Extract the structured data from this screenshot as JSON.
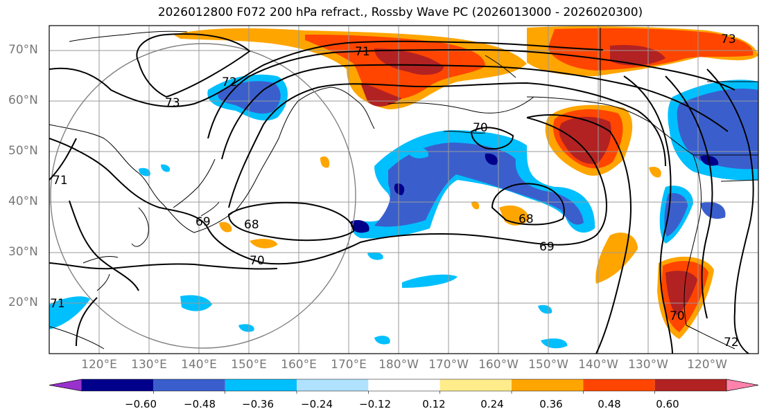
{
  "title": "2026012800 F072 200 hPa refract., Rossby Wave PC (2026013000 - 2026020300)",
  "lat_labels": [
    "70°N",
    "60°N",
    "50°N",
    "40°N",
    "30°N",
    "20°N"
  ],
  "lon_labels": [
    "120°E",
    "130°E",
    "140°E",
    "150°E",
    "160°E",
    "170°E",
    "180°W",
    "170°W",
    "160°W",
    "150°W",
    "140°W",
    "130°W",
    "120°W"
  ],
  "colorbar": {
    "colors": [
      "#9932cc",
      "#00008b",
      "#3a5fcd",
      "#00bfff",
      "#b0e2ff",
      "#ffffff",
      "#ffec8b",
      "#ffa500",
      "#ff4500",
      "#b22222",
      "#ff82ab"
    ],
    "labels": [
      "−0.60",
      "−0.48",
      "−0.36",
      "−0.24",
      "−0.12",
      "0.12",
      "0.24",
      "0.36",
      "0.48",
      "0.60"
    ]
  },
  "contour_labels": [
    "73",
    "72",
    "71",
    "70",
    "69",
    "68",
    "68",
    "69",
    "70",
    "71",
    "72",
    "73",
    "70",
    "71"
  ]
}
